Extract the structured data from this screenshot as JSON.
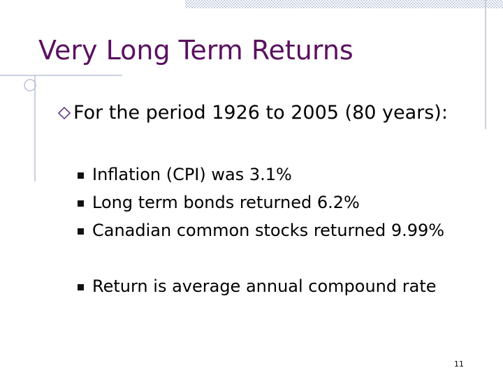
{
  "slide": {
    "title": "Very Long Term Returns",
    "main_point": "For the period 1926 to 2005 (80 years):",
    "bullets": [
      "Inflation (CPI) was 3.1%",
      "Long term bonds returned 6.2%",
      "Canadian common stocks returned 9.99%",
      "Return is average annual compound rate"
    ],
    "page_number": "11"
  }
}
